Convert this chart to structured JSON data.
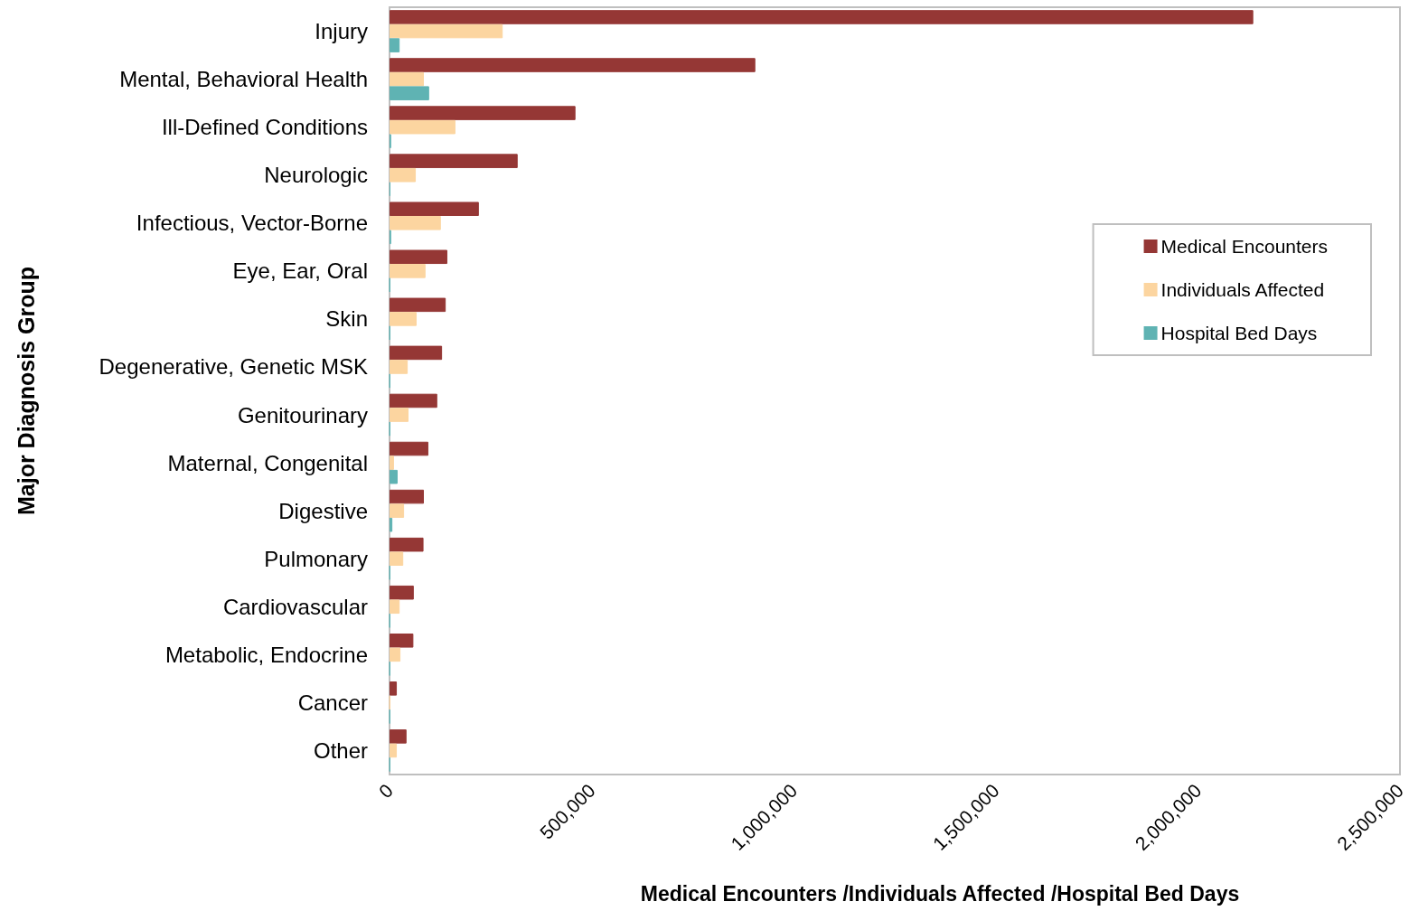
{
  "chart_data": {
    "type": "bar",
    "orientation": "horizontal",
    "ylabel": "Major Diagnosis Group",
    "xlabel": "Medical Encounters /Individuals Affected /Hospital Bed Days",
    "categories": [
      "Injury",
      "Mental, Behavioral Health",
      "Ill-Defined Conditions",
      "Neurologic",
      "Infectious, Vector-Borne",
      "Eye, Ear, Oral",
      "Skin",
      "Degenerative, Genetic MSK",
      "Genitourinary",
      "Maternal, Congenital",
      "Digestive",
      "Pulmonary",
      "Cardiovascular",
      "Metabolic, Endocrine",
      "Cancer",
      "Other"
    ],
    "series": [
      {
        "name": "Medical Encounters",
        "color": "#953735",
        "values": [
          2137000,
          905000,
          460000,
          317000,
          221000,
          143000,
          139000,
          130000,
          118000,
          96000,
          85000,
          84000,
          60000,
          59000,
          18000,
          42000
        ]
      },
      {
        "name": "Individuals Affected",
        "color": "#fcd5a0",
        "values": [
          280000,
          85000,
          163000,
          65000,
          127000,
          89000,
          67000,
          45000,
          47000,
          11000,
          36000,
          34000,
          25000,
          27000,
          1000,
          18000
        ]
      },
      {
        "name": "Hospital Bed Days",
        "color": "#5fb3b3",
        "values": [
          25000,
          98000,
          4000,
          2000,
          4000,
          1000,
          1000,
          1000,
          1000,
          20000,
          7000,
          1000,
          1000,
          1000,
          1000,
          1000
        ]
      }
    ],
    "xlim": [
      0,
      2500000
    ],
    "xticks": [
      0,
      {
        "value": 500000,
        "label": "500,000"
      },
      {
        "value": 1000000,
        "label": "1,000,000"
      },
      {
        "value": 1500000,
        "label": "1,500,000"
      },
      {
        "value": 2000000,
        "label": "2,000,000"
      },
      {
        "value": 2500000,
        "label": "2,500,000"
      }
    ],
    "grid": false,
    "legend": "right"
  }
}
